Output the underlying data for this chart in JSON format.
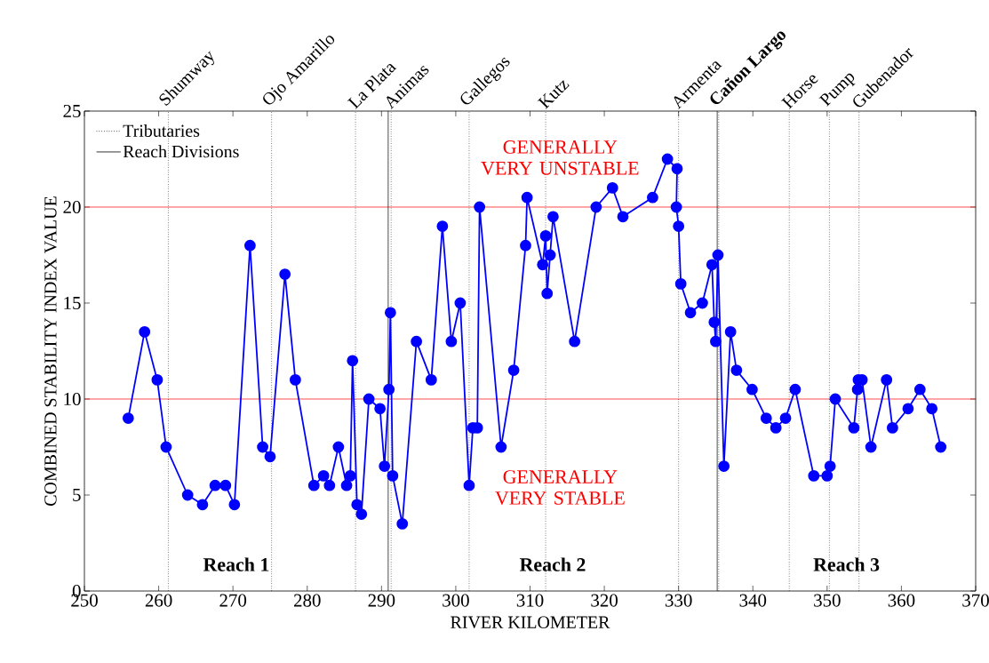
{
  "chart_data": {
    "type": "line",
    "xlabel": "RIVER KILOMETER",
    "ylabel": "COMBINED STABILITY INDEX VALUE",
    "xlim": [
      250,
      370
    ],
    "xticks": [
      250,
      260,
      270,
      280,
      290,
      300,
      310,
      320,
      330,
      340,
      350,
      360,
      370
    ],
    "ylim": [
      0,
      25
    ],
    "yticks": [
      0,
      5,
      10,
      15,
      20,
      25
    ],
    "grid": false,
    "legend": "top left",
    "marker": "circle",
    "line_style": "solid",
    "series": [
      {
        "color": "#0000ff",
        "x": [
          255.9,
          258.1,
          259.8,
          261.0,
          263.9,
          265.9,
          267.6,
          269.0,
          270.2,
          272.3,
          274.0,
          275.0,
          277.0,
          278.4,
          280.9,
          282.2,
          283.0,
          284.2,
          285.3,
          285.8,
          286.1,
          286.7,
          287.3,
          288.3,
          289.8,
          290.4,
          291.0,
          291.2,
          291.5,
          292.8,
          294.7,
          296.7,
          298.2,
          299.4,
          300.6,
          301.8,
          302.3,
          302.9,
          303.2,
          306.1,
          307.8,
          309.4,
          309.6,
          311.7,
          312.1,
          312.3,
          312.7,
          313.1,
          316.0,
          318.9,
          321.1,
          322.5,
          326.5,
          328.5,
          329.8,
          329.7,
          330.0,
          330.3,
          331.6,
          333.2,
          334.5,
          334.8,
          335.0,
          335.3,
          336.1,
          337.0,
          337.8,
          339.9,
          341.8,
          343.1,
          344.4,
          345.7,
          348.2,
          350.0,
          350.4,
          351.1,
          353.6,
          354.1,
          354.2,
          354.7,
          355.9,
          358.0,
          358.8,
          360.9,
          362.5,
          364.1,
          365.3
        ],
        "values": [
          9.0,
          13.5,
          11.0,
          7.5,
          5.0,
          4.5,
          5.5,
          5.5,
          4.5,
          18.0,
          7.5,
          7.0,
          16.5,
          11.0,
          5.5,
          6.0,
          5.5,
          7.5,
          5.5,
          6.0,
          12.0,
          4.5,
          4.0,
          10.0,
          9.5,
          6.5,
          10.5,
          14.5,
          6.0,
          3.5,
          13.0,
          11.0,
          19.0,
          13.0,
          15.0,
          5.5,
          8.5,
          8.5,
          20.0,
          7.5,
          11.5,
          18.0,
          20.5,
          17.0,
          18.5,
          15.5,
          17.5,
          19.5,
          13.0,
          20.0,
          21.0,
          19.5,
          20.5,
          22.5,
          22.0,
          20.0,
          19.0,
          16.0,
          14.5,
          15.0,
          17.0,
          14.0,
          13.0,
          17.5,
          6.5,
          13.5,
          11.5,
          10.5,
          9.0,
          8.5,
          9.0,
          10.5,
          6.0,
          6.0,
          6.5,
          10.0,
          8.5,
          10.5,
          11.0,
          11.0,
          7.5,
          11.0,
          8.5,
          9.5,
          10.5,
          9.5,
          7.5
        ]
      }
    ],
    "ref_lines": [
      {
        "axis": "y",
        "value": 10,
        "color": "#ff0000",
        "line_style": "solid"
      },
      {
        "axis": "y",
        "value": 20,
        "color": "#ff0000",
        "line_style": "solid"
      },
      {
        "axis": "x",
        "value": 261.3,
        "label": "Shumway",
        "color": "#000000",
        "line_style": "dotted"
      },
      {
        "axis": "x",
        "value": 275.2,
        "label": "Ojo Amarillo",
        "color": "#000000",
        "line_style": "dotted"
      },
      {
        "axis": "x",
        "value": 286.5,
        "label": "La Plata",
        "color": "#000000",
        "line_style": "dotted"
      },
      {
        "axis": "x",
        "value": 291.3,
        "label": "Animas",
        "color": "#000000",
        "line_style": "dotted"
      },
      {
        "axis": "x",
        "value": 301.8,
        "label": "Gallegos",
        "color": "#000000",
        "line_style": "dotted"
      },
      {
        "axis": "x",
        "value": 312.1,
        "label": "Kutz",
        "color": "#000000",
        "line_style": "dotted"
      },
      {
        "axis": "x",
        "value": 330.0,
        "label": "Armenta",
        "color": "#000000",
        "line_style": "dotted"
      },
      {
        "axis": "x",
        "value": 335.4,
        "label": "**Cañon Largo**",
        "color": "#000000",
        "line_style": "dotted"
      },
      {
        "axis": "x",
        "value": 344.9,
        "label": "Horse",
        "color": "#000000",
        "line_style": "dotted"
      },
      {
        "axis": "x",
        "value": 350.3,
        "label": "Pump",
        "color": "#000000",
        "line_style": "dotted"
      },
      {
        "axis": "x",
        "value": 354.3,
        "label": "Gubenador",
        "color": "#000000",
        "line_style": "dotted"
      },
      {
        "axis": "x",
        "value": 290.9,
        "color": "#000000",
        "line_style": "solid"
      },
      {
        "axis": "x",
        "value": 335.2,
        "color": "#000000",
        "line_style": "solid"
      }
    ],
    "annotations": [
      "Tributaries",
      "Reach Divisions",
      "GENERALLY VERY UNSTABLE",
      "GENERALLY VERY STABLE",
      "**Reach 1**",
      "**Reach 2**",
      "**Reach 3**"
    ]
  }
}
